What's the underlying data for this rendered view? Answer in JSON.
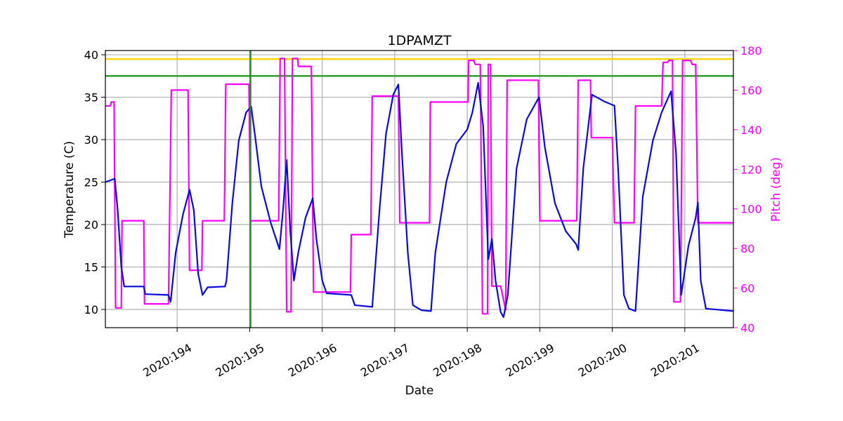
{
  "chart_data": {
    "type": "line",
    "title": "1DPAMZT",
    "xlabel": "Date",
    "ylabel": "Temperature (C)",
    "y2label": "Pitch (deg)",
    "xlim": [
      193.01,
      201.67
    ],
    "xticks": [
      {
        "value": 194,
        "label": "2020:194"
      },
      {
        "value": 195,
        "label": "2020:195"
      },
      {
        "value": 196,
        "label": "2020:196"
      },
      {
        "value": 197,
        "label": "2020:197"
      },
      {
        "value": 198,
        "label": "2020:198"
      },
      {
        "value": 199,
        "label": "2020:199"
      },
      {
        "value": 200,
        "label": "2020:200"
      },
      {
        "value": 201,
        "label": "2020:201"
      }
    ],
    "ylim": [
      7.85,
      40.5
    ],
    "yticks": [
      10,
      15,
      20,
      25,
      30,
      35,
      40
    ],
    "y2lim": [
      40,
      180
    ],
    "y2ticks": [
      40,
      60,
      80,
      100,
      120,
      140,
      160,
      180
    ],
    "grid": true,
    "hlines": [
      {
        "value": 39.5,
        "color": "#ffd700"
      },
      {
        "value": 37.5,
        "color": "#2ca02c"
      }
    ],
    "vlines": [
      {
        "value": 195.01,
        "color": "#228b22"
      }
    ],
    "series": [
      {
        "color": "#0a0adc",
        "axis": "y",
        "x": [
          193.01,
          193.14,
          193.18,
          193.23,
          193.27,
          193.54,
          193.56,
          193.88,
          193.91,
          193.98,
          194.08,
          194.17,
          194.23,
          194.29,
          194.35,
          194.42,
          194.66,
          194.68,
          194.76,
          194.85,
          194.95,
          195.02,
          195.07,
          195.16,
          195.29,
          195.41,
          195.46,
          195.51,
          195.56,
          195.61,
          195.67,
          195.77,
          195.87,
          195.92,
          196.0,
          196.06,
          196.4,
          196.45,
          196.69,
          196.79,
          196.88,
          196.98,
          197.05,
          197.1,
          197.18,
          197.25,
          197.37,
          197.5,
          197.56,
          197.71,
          197.85,
          198.0,
          198.07,
          198.15,
          198.22,
          198.29,
          198.34,
          198.39,
          198.46,
          198.5,
          198.56,
          198.68,
          198.82,
          198.99,
          199.07,
          199.21,
          199.36,
          199.5,
          199.53,
          199.6,
          199.72,
          199.89,
          200.03,
          200.08,
          200.16,
          200.23,
          200.32,
          200.42,
          200.56,
          200.68,
          200.81,
          200.88,
          200.95,
          201.05,
          201.15,
          201.18,
          201.22,
          201.29,
          201.67
        ],
        "values": [
          25.0,
          25.4,
          21.7,
          15.0,
          12.7,
          12.7,
          11.8,
          11.7,
          10.9,
          16.7,
          21.2,
          24.1,
          21.7,
          14.2,
          11.7,
          12.6,
          12.7,
          13.4,
          22.5,
          29.9,
          33.2,
          33.9,
          30.7,
          24.5,
          20.2,
          17.1,
          21.7,
          27.6,
          19.2,
          13.4,
          16.7,
          20.8,
          23.1,
          18.3,
          13.4,
          11.9,
          11.7,
          10.5,
          10.3,
          21.7,
          30.7,
          35.3,
          36.5,
          28.3,
          16.7,
          10.5,
          9.9,
          9.8,
          16.7,
          25.0,
          29.5,
          31.2,
          33.2,
          36.7,
          31.6,
          15.9,
          18.3,
          13.4,
          9.7,
          9.1,
          11.7,
          26.6,
          32.4,
          35.0,
          29.1,
          22.5,
          19.2,
          17.7,
          17.0,
          26.6,
          35.3,
          34.5,
          34.0,
          26.6,
          11.7,
          10.1,
          9.8,
          23.3,
          29.9,
          33.2,
          35.7,
          28.3,
          11.7,
          17.5,
          20.8,
          22.6,
          13.4,
          10.1,
          9.8
        ]
      },
      {
        "color": "#ff00ff",
        "axis": "y2",
        "x": [
          193.01,
          193.08,
          193.09,
          193.13,
          193.15,
          193.23,
          193.24,
          193.54,
          193.55,
          193.88,
          193.92,
          194.15,
          194.17,
          194.34,
          194.35,
          194.65,
          194.67,
          194.99,
          195.01,
          195.4,
          195.42,
          195.48,
          195.51,
          195.57,
          195.59,
          195.66,
          195.67,
          195.85,
          195.88,
          196.39,
          196.4,
          196.67,
          196.69,
          197.05,
          197.07,
          197.48,
          197.49,
          198.01,
          198.02,
          198.09,
          198.11,
          198.18,
          198.21,
          198.28,
          198.29,
          198.32,
          198.34,
          198.46,
          198.53,
          198.55,
          198.98,
          199.0,
          199.51,
          199.53,
          199.7,
          199.71,
          200.0,
          200.03,
          200.3,
          200.32,
          200.68,
          200.7,
          200.76,
          200.78,
          200.83,
          200.85,
          200.94,
          200.97,
          201.08,
          201.1,
          201.15,
          201.18,
          201.67
        ],
        "values": [
          152,
          152,
          154,
          154,
          50,
          50,
          94,
          94,
          52,
          52,
          160,
          160,
          69,
          69,
          94,
          94,
          163,
          163,
          94,
          94,
          176,
          176,
          48,
          48,
          176,
          176,
          172,
          172,
          58,
          58,
          87,
          87,
          157,
          157,
          93,
          93,
          154,
          154,
          175,
          175,
          173,
          173,
          47,
          47,
          173,
          173,
          61,
          61,
          49,
          165,
          165,
          94,
          94,
          165,
          165,
          136,
          136,
          93,
          93,
          152,
          152,
          174,
          174,
          175,
          175,
          53,
          53,
          175,
          175,
          173,
          173,
          93,
          93
        ]
      }
    ]
  }
}
